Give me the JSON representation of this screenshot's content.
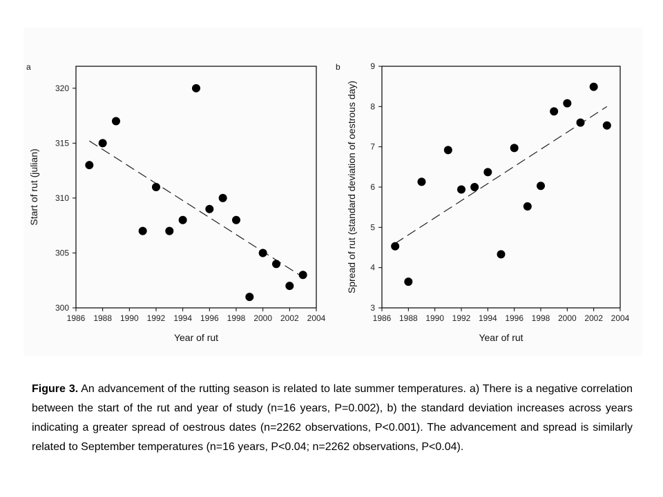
{
  "chart_data": [
    {
      "type": "scatter",
      "panel_label": "a",
      "xlabel": "Year of rut",
      "ylabel": "Start of rut (julian)",
      "xlim": [
        1986,
        2004
      ],
      "ylim": [
        300,
        322
      ],
      "xticks": [
        1986,
        1988,
        1990,
        1992,
        1994,
        1996,
        1998,
        2000,
        2002,
        2004
      ],
      "yticks": [
        300,
        305,
        310,
        315,
        320
      ],
      "x": [
        1987,
        1988,
        1989,
        1991,
        1992,
        1993,
        1994,
        1995,
        1996,
        1997,
        1998,
        1999,
        2000,
        2001,
        2002,
        2003
      ],
      "y": [
        313,
        315,
        317,
        307,
        311,
        307,
        308,
        320,
        309,
        310,
        308,
        301,
        305,
        304,
        302,
        303
      ],
      "trendline": {
        "style": "dashed",
        "x": [
          1987,
          2003
        ],
        "y": [
          315.2,
          302.8
        ]
      },
      "grid": false,
      "legend": "none"
    },
    {
      "type": "scatter",
      "panel_label": "b",
      "xlabel": "Year of rut",
      "ylabel": "Spread of rut (standard deviation of oestrous day)",
      "xlim": [
        1986,
        2004
      ],
      "ylim": [
        3,
        9
      ],
      "xticks": [
        1986,
        1988,
        1990,
        1992,
        1994,
        1996,
        1998,
        2000,
        2002,
        2004
      ],
      "yticks": [
        3,
        4,
        5,
        6,
        7,
        8,
        9
      ],
      "x": [
        1987,
        1988,
        1989,
        1991,
        1992,
        1993,
        1994,
        1995,
        1996,
        1997,
        1998,
        1999,
        2000,
        2001,
        2002,
        2003
      ],
      "y": [
        4.53,
        3.65,
        6.13,
        6.92,
        5.94,
        6.0,
        6.37,
        4.33,
        6.97,
        5.52,
        6.03,
        7.88,
        8.08,
        7.6,
        8.49,
        7.53
      ],
      "trendline": {
        "style": "dashed",
        "x": [
          1987,
          2003
        ],
        "y": [
          4.6,
          8.0
        ]
      },
      "grid": false,
      "legend": "none"
    }
  ],
  "caption": {
    "label": "Figure 3.",
    "text": " An advancement of the rutting season is related to late summer temperatures. a) There is a negative correlation between the start of the rut and year of study (n=16 years, P=0.002), b) the standard deviation increases across years indicating a greater spread of oestrous dates (n=2262 observations, P<0.001). The advancement and spread is similarly related to September temperatures (n=16 years, P<0.04; n=2262 observations, P<0.04)."
  }
}
